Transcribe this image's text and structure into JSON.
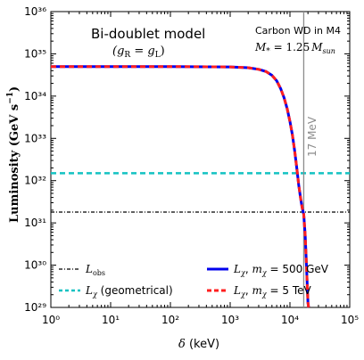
{
  "chart_data": {
    "type": "line",
    "xscale": "log",
    "yscale": "log",
    "xlim": [
      1,
      100000
    ],
    "ylim": [
      1e+29,
      1e+36
    ],
    "grid": false,
    "xlabel": "δ (keV)",
    "ylabel": "Luminosity (GeV s⁻¹)",
    "x_tick_labels": [
      "10⁰",
      "10¹",
      "10²",
      "10³",
      "10⁴",
      "10⁵"
    ],
    "y_tick_labels": [
      "10²⁹",
      "10³⁰",
      "10³¹",
      "10³²",
      "10³³",
      "10³⁴",
      "10³⁵",
      "10³⁶"
    ],
    "title_left": "Bi-doublet model",
    "subtitle_left": "(gR = gL)",
    "annotation_top_right_1": "Carbon WD in M4",
    "annotation_top_right_2": "M* = 1.25 Msun",
    "vline": {
      "x": 17000,
      "label": "17 MeV",
      "color": "#8c8c8c"
    },
    "hlines": [
      {
        "name": "L_obs",
        "y": 1.8e+31,
        "color": "#000000",
        "style": "dash-dot"
      },
      {
        "name": "L_χ (geometrical)",
        "y": 1.5e+32,
        "color": "#13c2c2",
        "style": "dashed"
      }
    ],
    "series": [
      {
        "name": "L_χ, m_χ = 500 GeV",
        "color": "#0000ee",
        "style": "solid",
        "x": [
          1,
          10,
          100,
          1000,
          2000,
          3000,
          4000,
          5000,
          6000,
          7000,
          8000,
          9000,
          10000,
          11000,
          12000,
          13000,
          14000,
          15000,
          16000,
          17000,
          18000,
          19000,
          20000,
          20500
        ],
        "y": [
          5e+34,
          5e+34,
          5e+34,
          4.9e+34,
          4.7e+34,
          4.3e+34,
          3.8e+34,
          3.1e+34,
          2.3e+34,
          1.5e+34,
          9e+33,
          5e+33,
          2.5e+33,
          1.2e+33,
          5e+32,
          2e+32,
          8e+31,
          4e+31,
          2.3e+31,
          1.6e+31,
          5e+30,
          8e+29,
          1.3e+29,
          1e+29
        ]
      },
      {
        "name": "L_χ, m_χ = 5 TeV",
        "color": "#ff1f1f",
        "style": "dashed",
        "x": [
          1,
          10,
          100,
          1000,
          2000,
          3000,
          4000,
          5000,
          6000,
          7000,
          8000,
          9000,
          10000,
          11000,
          12000,
          13000,
          14000,
          15000,
          16000,
          17000,
          18000,
          19000,
          20000,
          20500
        ],
        "y": [
          5e+34,
          5e+34,
          5e+34,
          4.9e+34,
          4.7e+34,
          4.3e+34,
          3.8e+34,
          3.1e+34,
          2.3e+34,
          1.5e+34,
          9e+33,
          5e+33,
          2.5e+33,
          1.2e+33,
          5e+32,
          2e+32,
          8e+31,
          4e+31,
          2.3e+31,
          1.6e+31,
          5e+30,
          8e+29,
          1.3e+29,
          1e+29
        ]
      }
    ],
    "legend": {
      "placement": "bottom",
      "entries": [
        {
          "label": "L_obs",
          "color": "#000000",
          "style": "dash-dot"
        },
        {
          "label": "L_χ, m_χ = 500 GeV",
          "color": "#0000ee",
          "style": "solid"
        },
        {
          "label": "L_χ (geometrical)",
          "color": "#13c2c2",
          "style": "dashed"
        },
        {
          "label": "L_χ, m_χ = 5 TeV",
          "color": "#ff1f1f",
          "style": "dashed"
        }
      ]
    }
  }
}
